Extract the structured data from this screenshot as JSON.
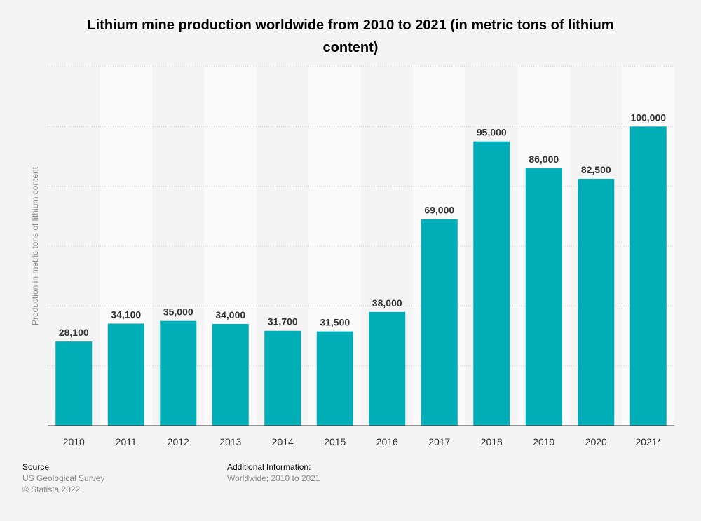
{
  "chart_data": {
    "type": "bar",
    "title": "Lithium mine production worldwide from 2010 to 2021 (in metric tons of lithium content)",
    "ylabel": "Production in metric tons of lithium content",
    "xlabel": "",
    "categories": [
      "2010",
      "2011",
      "2012",
      "2013",
      "2014",
      "2015",
      "2016",
      "2017",
      "2018",
      "2019",
      "2020",
      "2021*"
    ],
    "values": [
      28100,
      34100,
      35000,
      34000,
      31700,
      31500,
      38000,
      69000,
      95000,
      86000,
      82500,
      100000
    ],
    "data_labels": [
      "28,100",
      "34,100",
      "35,000",
      "34,000",
      "31,700",
      "31,500",
      "38,000",
      "69,000",
      "95,000",
      "86,000",
      "82,500",
      "100,000"
    ],
    "ylim": [
      0,
      120000
    ],
    "grid": true,
    "bar_color": "#00aeb8"
  },
  "footer": {
    "source_heading": "Source",
    "source_text": "US Geological Survey",
    "copyright": "© Statista 2022",
    "additional_heading": "Additional Information:",
    "additional_text": "Worldwide; 2010 to 2021"
  }
}
